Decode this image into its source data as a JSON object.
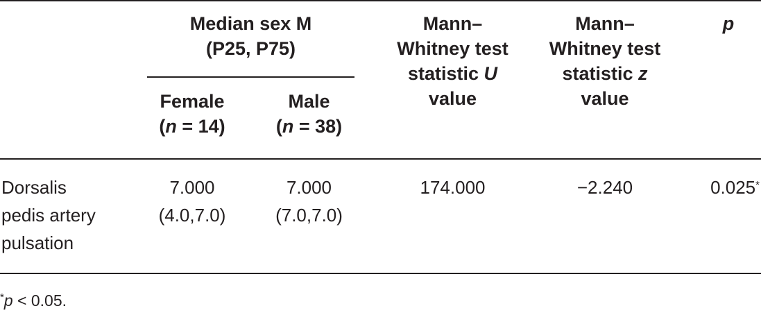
{
  "table": {
    "header": {
      "median_group": {
        "line1": "Median sex M",
        "line2": "(P25, P75)"
      },
      "female": {
        "line1": "Female",
        "n_label": "n",
        "n_value": " = 14)"
      },
      "male": {
        "line1": "Male",
        "n_label": "n",
        "n_value": " = 38)"
      },
      "mw_u": {
        "line1": "Mann–",
        "line2": "Whitney test",
        "line3a": "statistic ",
        "line3b": "U",
        "line4": "value"
      },
      "mw_z": {
        "line1": "Mann–",
        "line2": "Whitney test",
        "line3a": "statistic ",
        "line3b": "z",
        "line4": "value"
      },
      "p": "p"
    },
    "rows": [
      {
        "label": [
          "Dorsalis",
          "pedis artery",
          "pulsation"
        ],
        "female": [
          "7.000",
          "(4.0,7.0)"
        ],
        "male": [
          "7.000",
          "(7.0,7.0)"
        ],
        "u": "174.000",
        "z": "−2.240",
        "p": "0.025",
        "p_mark": "*"
      }
    ]
  },
  "footnote": {
    "mark": "*",
    "p": "p",
    "text": " < 0.05."
  }
}
